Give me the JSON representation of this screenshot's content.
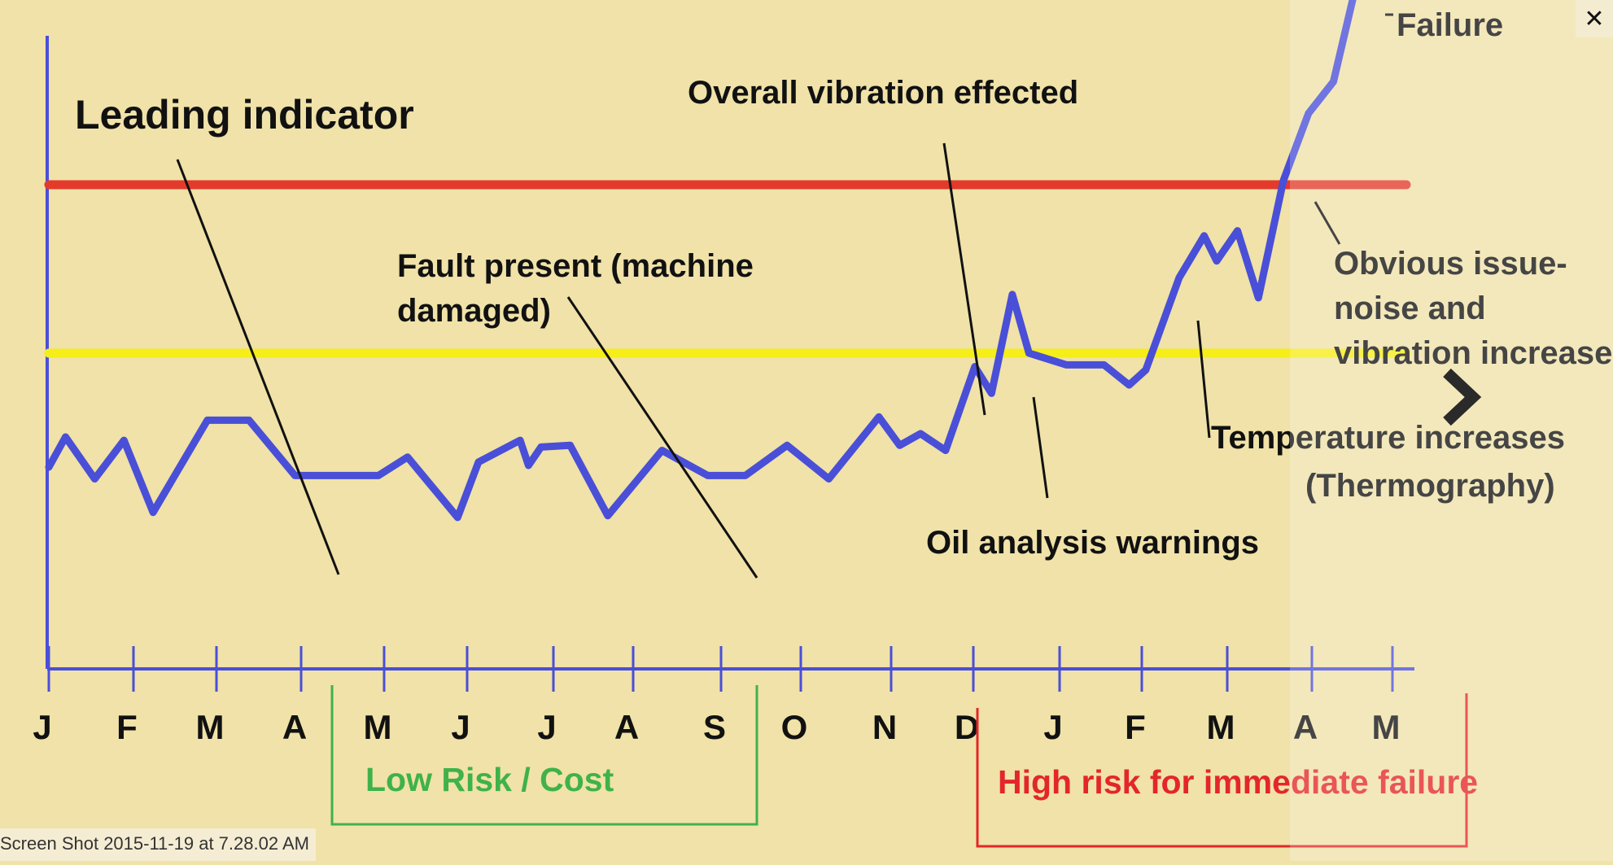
{
  "viewer": {
    "caption": "Screen Shot 2015-11-19 at 7.28.02 AM",
    "close_icon": "close-icon",
    "next_icon": "chevron-right-icon"
  },
  "chart_data": {
    "type": "line",
    "x_ticks": [
      "J",
      "F",
      "M",
      "A",
      "M",
      "J",
      "J",
      "A",
      "S",
      "O",
      "N",
      "D",
      "J",
      "F",
      "M",
      "A",
      "M"
    ],
    "series": [
      {
        "color": "#4a4fd8",
        "points": [
          [
            0.0,
            0.32
          ],
          [
            0.2,
            0.5
          ],
          [
            0.55,
            0.25
          ],
          [
            0.9,
            0.48
          ],
          [
            1.25,
            0.05
          ],
          [
            1.9,
            0.6
          ],
          [
            2.4,
            0.6
          ],
          [
            2.95,
            0.27
          ],
          [
            3.4,
            0.27
          ],
          [
            3.95,
            0.27
          ],
          [
            4.3,
            0.38
          ],
          [
            4.9,
            0.02
          ],
          [
            5.15,
            0.35
          ],
          [
            5.65,
            0.48
          ],
          [
            5.75,
            0.33
          ],
          [
            5.9,
            0.44
          ],
          [
            6.25,
            0.45
          ],
          [
            6.7,
            0.03
          ],
          [
            7.35,
            0.42
          ],
          [
            7.9,
            0.27
          ],
          [
            8.35,
            0.27
          ],
          [
            8.85,
            0.45
          ],
          [
            9.35,
            0.25
          ],
          [
            9.95,
            0.62
          ],
          [
            10.2,
            0.45
          ],
          [
            10.45,
            0.52
          ],
          [
            10.75,
            0.42
          ],
          [
            11.1,
            0.92
          ],
          [
            11.3,
            0.76
          ],
          [
            11.55,
            1.35
          ],
          [
            11.75,
            1.0
          ],
          [
            12.2,
            0.93
          ],
          [
            12.65,
            0.93
          ],
          [
            12.95,
            0.81
          ],
          [
            13.15,
            0.9
          ],
          [
            13.55,
            1.45
          ],
          [
            13.85,
            1.7
          ],
          [
            14.0,
            1.55
          ],
          [
            14.25,
            1.73
          ],
          [
            14.5,
            1.33
          ],
          [
            14.8,
            2.03
          ],
          [
            15.1,
            2.43
          ],
          [
            15.4,
            2.62
          ],
          [
            15.65,
            3.15
          ]
        ]
      }
    ],
    "thresholds": [
      {
        "color": "#e33a2c",
        "value": 2.0
      },
      {
        "color": "#f5ee18",
        "value": 1.0
      }
    ],
    "annotations": [
      "Leading indicator",
      "Overall vibration effected",
      "Fault present (machine",
      "damaged)",
      "Obvious issue-",
      "noise and",
      "vibration increase",
      "Temperature increases",
      "(Thermography)",
      "Oil analysis warnings",
      "Failure"
    ],
    "brackets": [
      {
        "label": "Low Risk / Cost",
        "color": "#3fb24a"
      },
      {
        "label": "High risk for immediate failure",
        "color": "#e3262b"
      }
    ],
    "axis_color": "#4a4fd8"
  }
}
